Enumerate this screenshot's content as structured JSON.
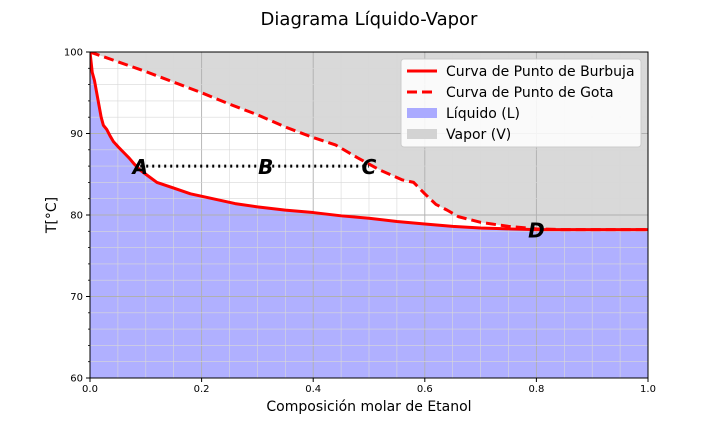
{
  "chart_data": {
    "type": "line",
    "title": "Diagrama Líquido-Vapor",
    "xlabel": "Composición molar de Etanol",
    "ylabel": "T[°C]",
    "xlim": [
      0,
      1
    ],
    "ylim": [
      60,
      100
    ],
    "x_ticks": [
      0,
      0.2,
      0.4,
      0.6,
      0.8,
      1
    ],
    "x_tick_labels": [
      "0.0",
      "0.2",
      "0.4",
      "0.6",
      "0.8",
      "1.0"
    ],
    "y_ticks": [
      60,
      70,
      80,
      90,
      100
    ],
    "y_tick_labels": [
      "60",
      "70",
      "80",
      "90",
      "100"
    ],
    "grid": "major and minor",
    "legend_position": "top-right",
    "colors": {
      "curve": "#ff0000",
      "liquid_fill": "#b0b0ff",
      "vapor_fill": "#d9d9d9",
      "tie_line": "#000000",
      "liquid_legend_patch": "#aaaaff",
      "vapor_legend_patch": "#d3d3d3"
    },
    "series": [
      {
        "name": "Curva de Punto de Burbuja",
        "style": "solid",
        "x": [
          0,
          0.004,
          0.008,
          0.012,
          0.016,
          0.02,
          0.024,
          0.03,
          0.036,
          0.042,
          0.05,
          0.06,
          0.07,
          0.08,
          0.09,
          0.1,
          0.12,
          0.15,
          0.18,
          0.22,
          0.26,
          0.3,
          0.35,
          0.4,
          0.45,
          0.5,
          0.55,
          0.6,
          0.65,
          0.7,
          0.75,
          0.8,
          0.85,
          0.9,
          0.95,
          1.0
        ],
        "y": [
          100,
          97.5,
          96.5,
          95,
          93.5,
          92,
          91,
          90.5,
          89.7,
          89,
          88.4,
          87.7,
          87,
          86.2,
          85.5,
          85,
          84,
          83.3,
          82.6,
          82,
          81.4,
          81,
          80.6,
          80.3,
          79.9,
          79.6,
          79.2,
          78.9,
          78.6,
          78.4,
          78.3,
          78.2,
          78.2,
          78.2,
          78.2,
          78.2
        ]
      },
      {
        "name": "Curva de Punto de Gota",
        "style": "dashed",
        "x": [
          0,
          0.05,
          0.1,
          0.15,
          0.2,
          0.25,
          0.3,
          0.35,
          0.4,
          0.44,
          0.48,
          0.52,
          0.56,
          0.58,
          0.6,
          0.62,
          0.64,
          0.66,
          0.7,
          0.75,
          0.8,
          0.85,
          0.9,
          0.95,
          1.0
        ],
        "y": [
          100,
          98.8,
          97.6,
          96.3,
          95,
          93.6,
          92.3,
          90.8,
          89.5,
          88.6,
          87,
          85.5,
          84.3,
          84,
          82.6,
          81.3,
          80.6,
          79.8,
          79.1,
          78.6,
          78.3,
          78.2,
          78.2,
          78.2,
          78.2
        ]
      }
    ],
    "fills": [
      {
        "name": "Líquido (L)",
        "region": "below bubble-point curve"
      },
      {
        "name": "Vapor (V)",
        "region": "above dew-point curve"
      }
    ],
    "tie_line": {
      "x": [
        0.09,
        0.5
      ],
      "y": 86,
      "style": "dotted"
    },
    "annotations": [
      {
        "text": "A",
        "x": 0.09,
        "y": 86
      },
      {
        "text": "B",
        "x": 0.315,
        "y": 86
      },
      {
        "text": "C",
        "x": 0.5,
        "y": 86
      },
      {
        "text": "D",
        "x": 0.8,
        "y": 78.2
      }
    ]
  }
}
